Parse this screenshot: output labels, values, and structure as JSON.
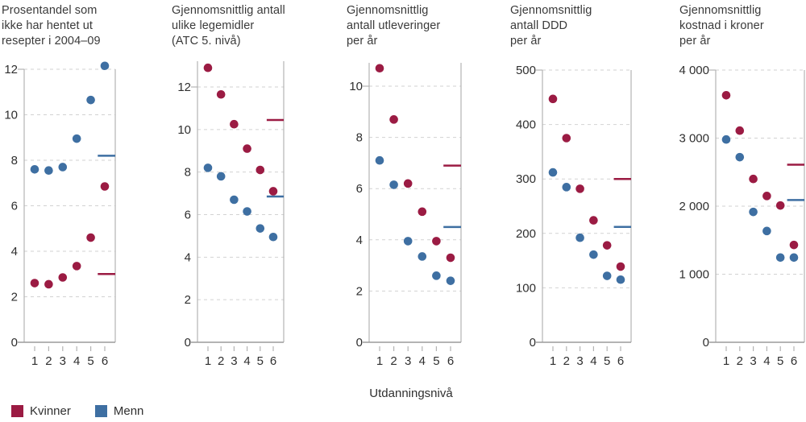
{
  "xlabel": "Utdanningsnivå",
  "legend": {
    "items": [
      {
        "label": "Kvinner",
        "color_key": "kvinner"
      },
      {
        "label": "Menn",
        "color_key": "menn"
      }
    ]
  },
  "colors": {
    "kvinner": "#9b1b43",
    "menn": "#3e6fa2",
    "grid": "#d2d2d2",
    "axis": "#b3b3b3",
    "axis_dark": "#9c9c9c",
    "tick_text": "#2f2f2f",
    "title_text": "#3a3a3a"
  },
  "chart_data": [
    {
      "type": "scatter",
      "title": "Prosentandel som\nikke har hentet ut\nresepter i 2004–09",
      "x": [
        1,
        2,
        3,
        4,
        5,
        6
      ],
      "series": [
        {
          "name": "Kvinner",
          "values": [
            2.6,
            2.55,
            2.85,
            3.35,
            4.6,
            6.85
          ]
        },
        {
          "name": "Menn",
          "values": [
            7.6,
            7.55,
            7.7,
            8.95,
            10.65,
            12.15
          ]
        }
      ],
      "mean_lines": {
        "kvinner": 3.0,
        "menn": 8.2
      },
      "yticks": [
        0,
        2,
        4,
        6,
        8,
        10,
        12
      ],
      "ytick_labels": [
        "0",
        "2",
        "4",
        "6",
        "8",
        "10",
        "12"
      ],
      "ylim": [
        0,
        12.2
      ],
      "grid": true
    },
    {
      "type": "scatter",
      "title": "Gjennomsnittlig antall\nulike legemidler\n(ATC 5. nivå)",
      "x": [
        1,
        2,
        3,
        4,
        5,
        6
      ],
      "series": [
        {
          "name": "Kvinner",
          "values": [
            12.9,
            11.65,
            10.25,
            9.1,
            8.1,
            7.1
          ]
        },
        {
          "name": "Menn",
          "values": [
            8.2,
            7.8,
            6.7,
            6.15,
            5.35,
            4.95
          ]
        }
      ],
      "mean_lines": {
        "kvinner": 10.45,
        "menn": 6.85
      },
      "yticks": [
        0,
        2,
        4,
        6,
        8,
        10,
        12
      ],
      "ytick_labels": [
        "0",
        "2",
        "4",
        "6",
        "8",
        "10",
        "12"
      ],
      "ylim": [
        0,
        13.2
      ],
      "grid": true
    },
    {
      "type": "scatter",
      "title": "Gjennomsnittlig\nantall utleveringer\nper år",
      "x": [
        1,
        2,
        3,
        4,
        5,
        6
      ],
      "series": [
        {
          "name": "Kvinner",
          "values": [
            10.7,
            8.7,
            6.2,
            5.1,
            3.95,
            3.3
          ]
        },
        {
          "name": "Menn",
          "values": [
            7.1,
            6.15,
            3.95,
            3.35,
            2.6,
            2.4
          ]
        }
      ],
      "mean_lines": {
        "kvinner": 6.9,
        "menn": 4.5
      },
      "yticks": [
        0,
        2,
        4,
        6,
        8,
        10
      ],
      "ytick_labels": [
        "0",
        "2",
        "4",
        "6",
        "8",
        "10"
      ],
      "ylim": [
        0,
        10.9
      ],
      "grid": true
    },
    {
      "type": "scatter",
      "title": "Gjennomsnittlig\nantall DDD\nper år",
      "x": [
        1,
        2,
        3,
        4,
        5,
        6
      ],
      "series": [
        {
          "name": "Kvinner",
          "values": [
            447,
            375,
            282,
            224,
            178,
            139
          ]
        },
        {
          "name": "Menn",
          "values": [
            312,
            285,
            192,
            161,
            122,
            115
          ]
        }
      ],
      "mean_lines": {
        "kvinner": 300,
        "menn": 212
      },
      "yticks": [
        0,
        100,
        200,
        300,
        400,
        500
      ],
      "ytick_labels": [
        "0",
        "100",
        "200",
        "300",
        "400",
        "500"
      ],
      "ylim": [
        0,
        505
      ],
      "grid": true
    },
    {
      "type": "scatter",
      "title": "Gjennomsnittlig\nkostnad i kroner\nper år",
      "x": [
        1,
        2,
        3,
        4,
        5,
        6
      ],
      "series": [
        {
          "name": "Kvinner",
          "values": [
            3630,
            3110,
            2400,
            2150,
            2010,
            1430
          ]
        },
        {
          "name": "Menn",
          "values": [
            2980,
            2720,
            1915,
            1635,
            1245,
            1245
          ]
        }
      ],
      "mean_lines": {
        "kvinner": 2610,
        "menn": 2090
      },
      "yticks": [
        0,
        1000,
        2000,
        3000,
        4000
      ],
      "ytick_labels": [
        "0",
        "1 000",
        "2 000",
        "3 000",
        "4 000"
      ],
      "ylim": [
        0,
        4050
      ],
      "grid": true
    }
  ]
}
